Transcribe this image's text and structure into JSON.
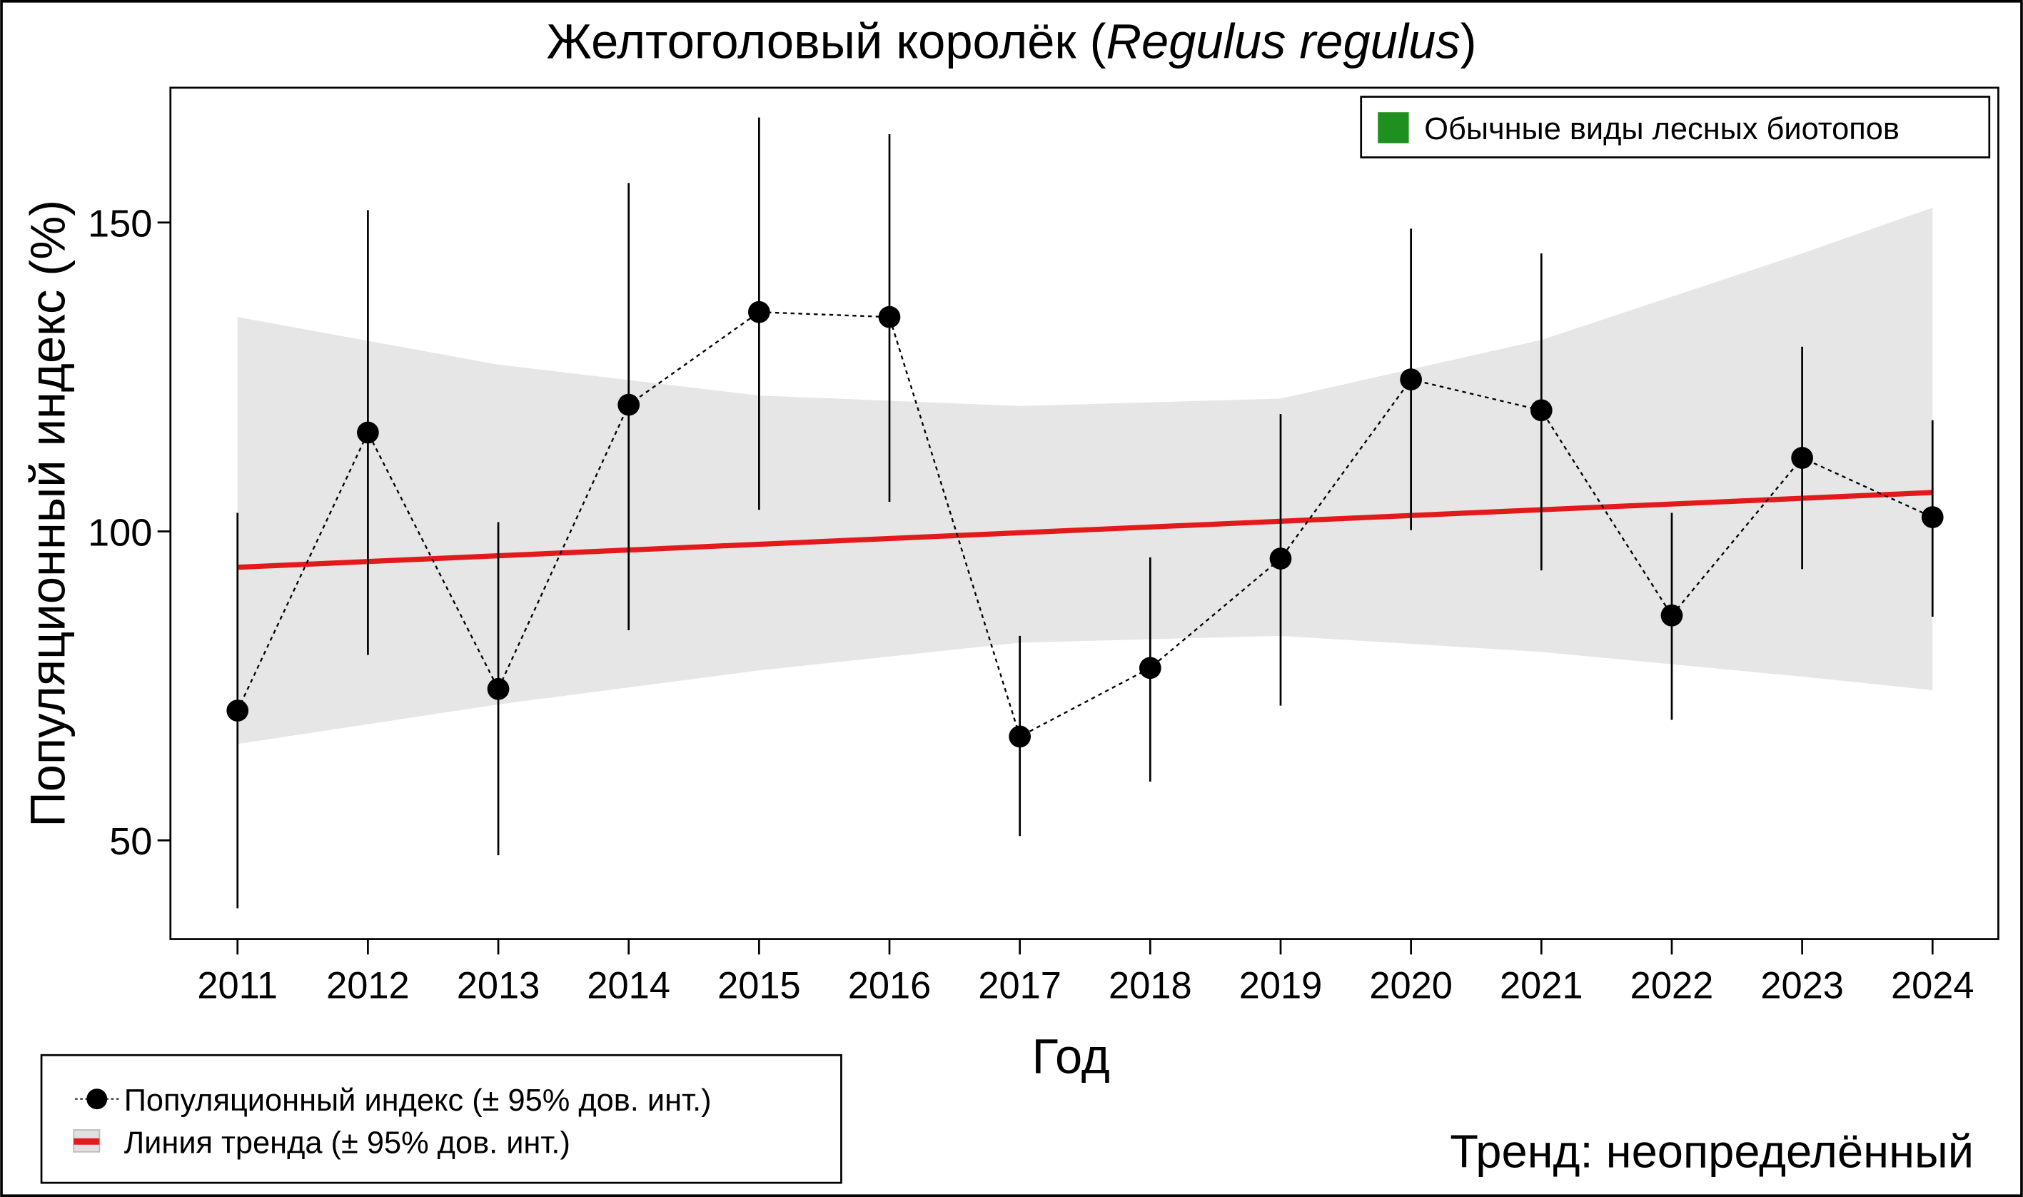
{
  "chart_data": {
    "type": "line",
    "title_main": "Желтоголовый королёк (",
    "title_italic": "Regulus regulus",
    "title_end": ")",
    "xlabel": "Год",
    "ylabel": "Популяционный индекс (%)",
    "ylim": [
      34,
      172
    ],
    "yticks": [
      50,
      100,
      150
    ],
    "x": [
      2011,
      2012,
      2013,
      2014,
      2015,
      2016,
      2017,
      2018,
      2019,
      2020,
      2021,
      2022,
      2023,
      2024
    ],
    "series": [
      {
        "name": "Популяционный индекс (± 95% дов. инт.)",
        "values": [
          71,
          116,
          74.5,
          120.5,
          135.5,
          134.7,
          66.8,
          77.9,
          95.6,
          124.6,
          119.6,
          86.4,
          111.9,
          102.3
        ],
        "ci_low": [
          39,
          80,
          47.6,
          84,
          103.5,
          104.8,
          50.7,
          59.5,
          71.8,
          100.2,
          93.7,
          69.5,
          93.9,
          86.2
        ],
        "ci_high": [
          103,
          152,
          101.5,
          156.4,
          167,
          164.3,
          83.1,
          95.8,
          119,
          149,
          145,
          103,
          129.9,
          118
        ]
      },
      {
        "name": "Линия тренда (± 95% дов. инт.)",
        "trend": {
          "x": [
            2011,
            2024
          ],
          "y": [
            94.2,
            106.3
          ]
        },
        "band_x": [
          2011,
          2013,
          2015,
          2017,
          2019,
          2021,
          2023,
          2024
        ],
        "band_upper": [
          134.7,
          127,
          122,
          120.3,
          121.5,
          131,
          145,
          152.4
        ],
        "band_lower": [
          65.6,
          72,
          77.5,
          82,
          83.1,
          80.5,
          76.5,
          74.3
        ]
      }
    ],
    "group_legend": "Обычные виды лесных биотопов",
    "trend_text": "Тренд: неопределённый",
    "colors": {
      "trend": "#e31a1c",
      "band": "#e6e6e6",
      "group": "#1f8f1f",
      "points": "#000000"
    }
  }
}
